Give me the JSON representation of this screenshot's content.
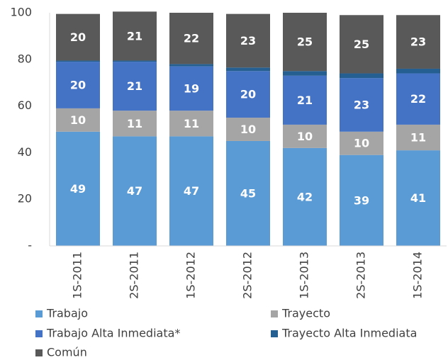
{
  "chart_data": {
    "type": "stacked_bar",
    "categories": [
      "1S-2011",
      "2S-2011",
      "1S-2012",
      "2S-2012",
      "1S-2013",
      "2S-2013",
      "1S-2014"
    ],
    "series": [
      {
        "name": "Trabajo",
        "color": "#5b9bd5",
        "data_labels": true,
        "values": [
          49,
          47,
          47,
          45,
          42,
          39,
          41
        ]
      },
      {
        "name": "Trayecto",
        "color": "#a5a5a5",
        "data_labels": true,
        "values": [
          10,
          11,
          11,
          10,
          10,
          10,
          11
        ]
      },
      {
        "name": "Trabajo Alta Inmediata*",
        "color": "#4472c4",
        "data_labels": true,
        "values": [
          20,
          21,
          19,
          20,
          21,
          23,
          22
        ]
      },
      {
        "name": "Trayecto Alta Inmediata",
        "color": "#255e91",
        "data_labels": false,
        "values": [
          0.5,
          0.5,
          1,
          1.5,
          2,
          2,
          2
        ]
      },
      {
        "name": "Común",
        "color": "#595959",
        "data_labels": true,
        "values": [
          20,
          21,
          22,
          23,
          25,
          25,
          23
        ]
      }
    ],
    "ylim": [
      0,
      100
    ],
    "yticks": [
      {
        "value": 0,
        "label": "-"
      },
      20,
      40,
      60,
      80,
      100
    ],
    "grid": false,
    "legend": "bottom"
  }
}
